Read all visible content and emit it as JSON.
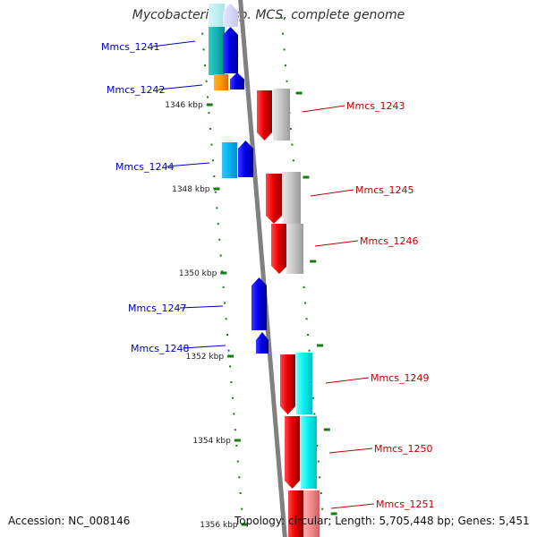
{
  "header": {
    "title": "Mycobacterium sp. MCS, complete genome"
  },
  "footer": {
    "accession": "Accession: NC_008146",
    "summary": "Topology: circular; Length: 5,705,448 bp; Genes: 5,451"
  },
  "colors": {
    "backbone": "#808080",
    "tick": "#1a7a1a",
    "left_label": "#0000c0",
    "right_label": "#c00000"
  },
  "ruler": [
    {
      "label": "1346 kbp"
    },
    {
      "label": "1348 kbp"
    },
    {
      "label": "1350 kbp"
    },
    {
      "label": "1352 kbp"
    },
    {
      "label": "1354 kbp"
    },
    {
      "label": "1356 kbp"
    }
  ],
  "genes": [
    {
      "name": "Mmcs_1241",
      "strand": "-"
    },
    {
      "name": "Mmcs_1242",
      "strand": "-"
    },
    {
      "name": "Mmcs_1243",
      "strand": "+"
    },
    {
      "name": "Mmcs_1244",
      "strand": "-"
    },
    {
      "name": "Mmcs_1245",
      "strand": "+"
    },
    {
      "name": "Mmcs_1246",
      "strand": "+"
    },
    {
      "name": "Mmcs_1247",
      "strand": "-"
    },
    {
      "name": "Mmcs_1248",
      "strand": "-"
    },
    {
      "name": "Mmcs_1249",
      "strand": "+"
    },
    {
      "name": "Mmcs_1250",
      "strand": "+"
    },
    {
      "name": "Mmcs_1251",
      "strand": "+"
    }
  ]
}
